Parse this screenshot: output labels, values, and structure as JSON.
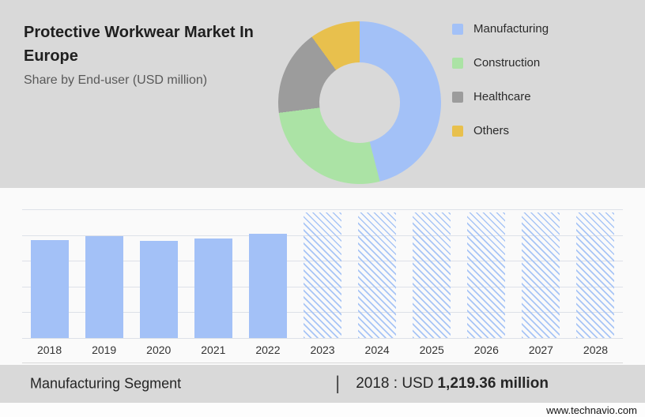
{
  "header": {
    "title_lines": [
      "Protective Workwear Market In",
      "Europe"
    ],
    "subtitle": "Share by End-user (USD million)"
  },
  "colors": {
    "accent_blue": "#a3c1f7",
    "accent_green": "#abe3a5",
    "accent_gray": "#9c9c9c",
    "accent_yellow": "#e8c04d",
    "panel_gray": "#d9d9d9"
  },
  "chart_data": [
    {
      "type": "pie",
      "style": "donut",
      "title": "Share by End-user (USD million)",
      "legend_position": "right",
      "segments": [
        {
          "label": "Manufacturing",
          "value": 46,
          "color": "#a3c1f7"
        },
        {
          "label": "Construction",
          "value": 27,
          "color": "#abe3a5"
        },
        {
          "label": "Healthcare",
          "value": 17,
          "color": "#9c9c9c"
        },
        {
          "label": "Others",
          "value": 10,
          "color": "#e8c04d"
        }
      ]
    },
    {
      "type": "bar",
      "categories": [
        "2018",
        "2019",
        "2020",
        "2021",
        "2022",
        "2023",
        "2024",
        "2025",
        "2026",
        "2027",
        "2028"
      ],
      "values": [
        1219.36,
        1262,
        1208,
        1241,
        1293,
        1556,
        1556,
        1556,
        1556,
        1556,
        1556
      ],
      "forecast_start_index": 5,
      "xlabel": "",
      "ylabel": "",
      "ylim": [
        0,
        1600
      ],
      "gridline_count": 6,
      "grid": true,
      "bar_color": "#a3c1f7",
      "forecast_style": "diagonal-hatch"
    }
  ],
  "footer": {
    "segment_label": "Manufacturing Segment",
    "divider": "|",
    "stat_prefix": "2018 : USD",
    "stat_value": "1,219.36 million"
  },
  "site": {
    "url": "www.technavio.com"
  }
}
